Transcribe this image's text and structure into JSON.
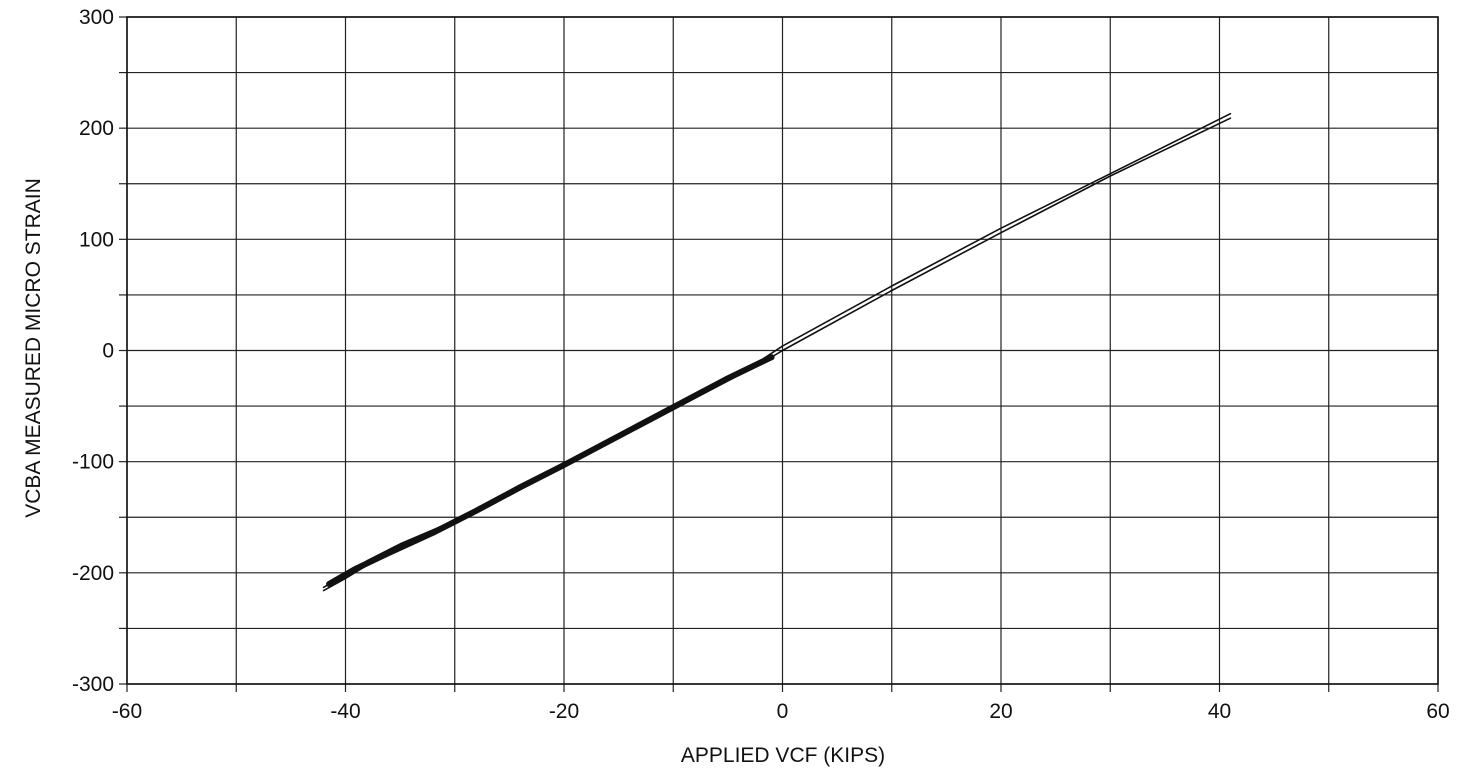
{
  "chart_data": {
    "type": "scatter",
    "title": "",
    "xlabel": "APPLIED VCF (KIPS)",
    "ylabel": "VCBA MEASURED MICRO STRAIN",
    "xlim": [
      -60,
      60
    ],
    "ylim": [
      -300,
      300
    ],
    "x_ticks": [
      "-60",
      "-40",
      "-20",
      "0",
      "20",
      "40",
      "60"
    ],
    "y_ticks": [
      "300",
      "200",
      "100",
      "0",
      "-100",
      "-200",
      "-300"
    ],
    "x_minor_step": 10,
    "y_minor_step": 50,
    "grid": true,
    "legend": "none",
    "line_color": "#111111",
    "series": [
      {
        "points": [
          [
            -42,
            -213
          ],
          [
            -40,
            -202
          ],
          [
            -38,
            -189
          ],
          [
            -35,
            -174
          ],
          [
            -30,
            -153
          ],
          [
            -25,
            -127
          ],
          [
            -20,
            -101
          ],
          [
            -10,
            -50
          ],
          [
            -2,
            -9
          ],
          [
            0,
            4
          ],
          [
            10,
            58
          ],
          [
            20,
            110
          ],
          [
            30,
            159
          ],
          [
            41,
            213
          ]
        ]
      },
      {
        "points": [
          [
            -42,
            -216
          ],
          [
            -40,
            -205
          ],
          [
            -38,
            -193
          ],
          [
            -35,
            -178
          ],
          [
            -30,
            -156
          ],
          [
            -25,
            -130
          ],
          [
            -20,
            -103
          ],
          [
            -10,
            -53
          ],
          [
            -2,
            -12
          ],
          [
            0,
            0
          ],
          [
            10,
            54
          ],
          [
            20,
            106
          ],
          [
            30,
            157
          ],
          [
            41,
            209
          ]
        ]
      },
      {
        "points": [
          [
            -41.5,
            -210
          ],
          [
            -39,
            -196
          ],
          [
            -36,
            -182
          ],
          [
            -32,
            -164
          ],
          [
            -28,
            -144
          ],
          [
            -24,
            -123
          ],
          [
            -20,
            -103
          ],
          [
            -15,
            -77
          ],
          [
            -10,
            -51
          ],
          [
            -5,
            -25
          ],
          [
            -1,
            -6
          ]
        ]
      }
    ]
  }
}
